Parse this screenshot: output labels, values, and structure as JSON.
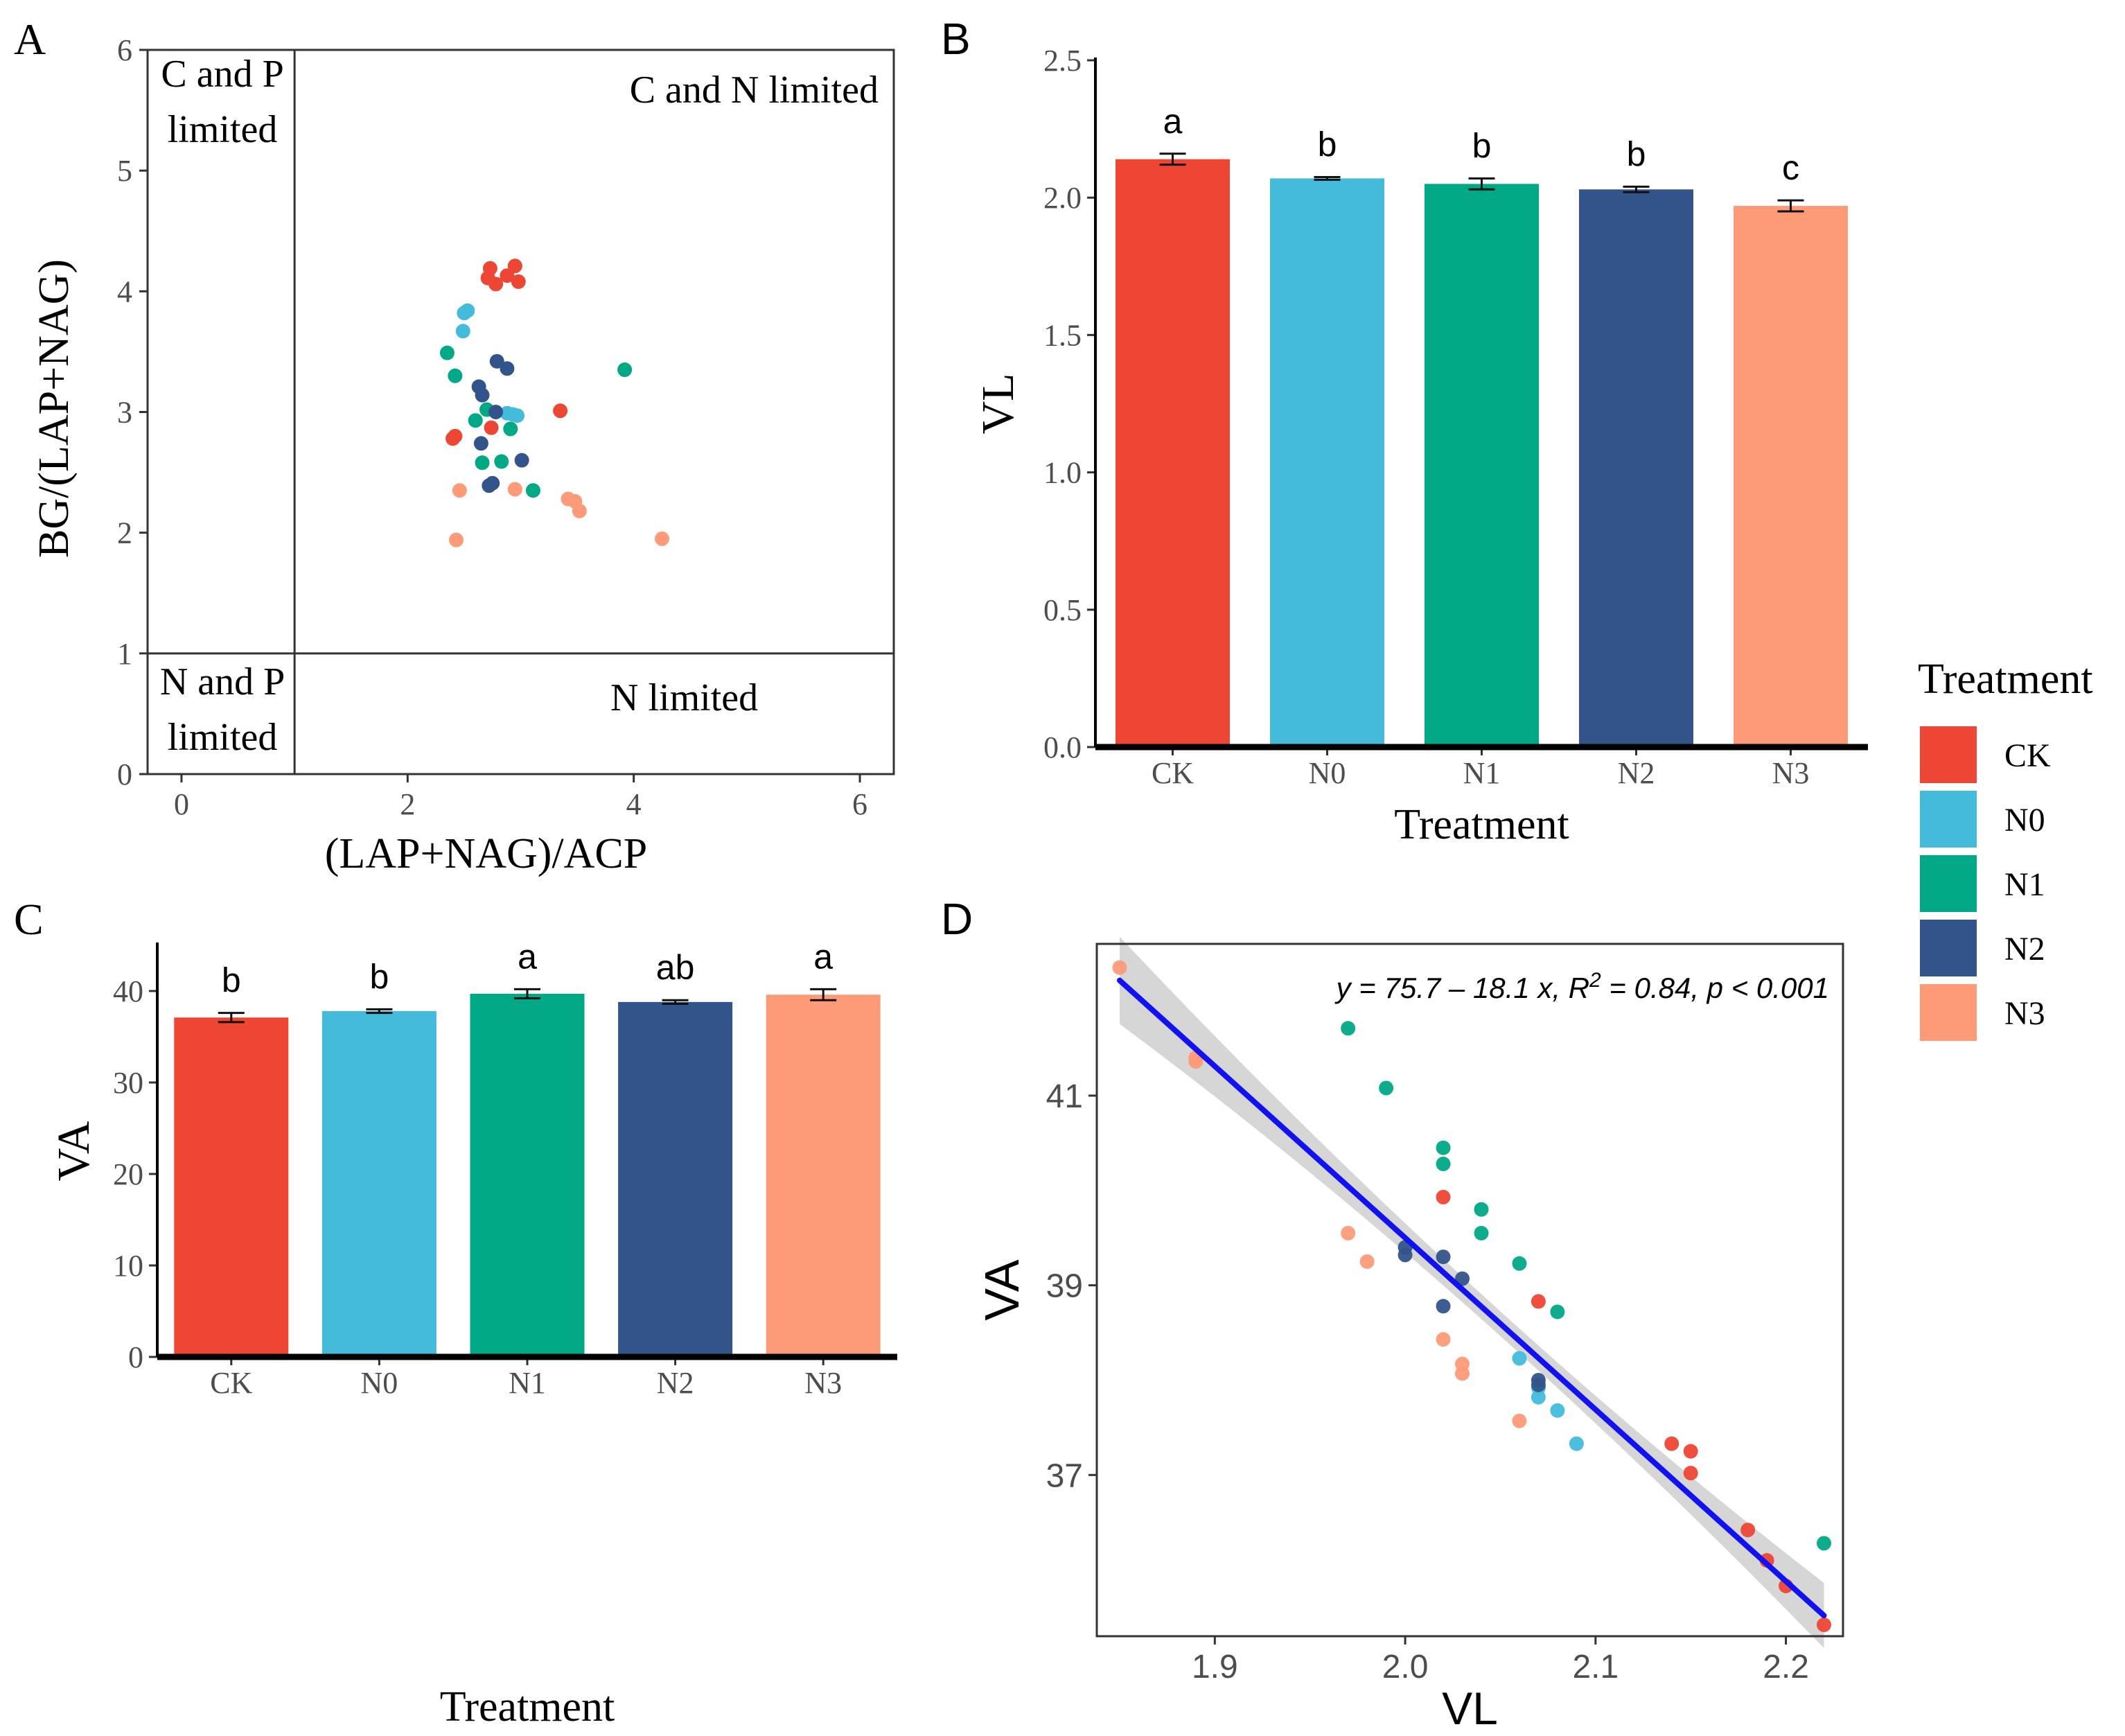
{
  "colors": {
    "CK": "#EE4634",
    "N0": "#45BBDC",
    "N1": "#00A886",
    "N2": "#33548A",
    "N3": "#FD9B78",
    "fit_line": "#1212F0",
    "ci_band": "#CFCFCF"
  },
  "legend": {
    "title": "Treatment",
    "items": [
      "CK",
      "N0",
      "N1",
      "N2",
      "N3"
    ]
  },
  "chart_data": [
    {
      "panel": "A",
      "type": "scatter",
      "xlabel": "(LAP+NAG)/ACP",
      "ylabel": "BG/(LAP+NAG)",
      "xlim": [
        -0.3,
        6.3
      ],
      "ylim": [
        0,
        6
      ],
      "xticks": [
        "0",
        "2",
        "4",
        "6"
      ],
      "yticks": [
        "0",
        "1",
        "2",
        "3",
        "4",
        "5",
        "6"
      ],
      "reference_lines": {
        "x": 1,
        "y": 1
      },
      "regions": [
        {
          "lines": [
            "C and P",
            "limited"
          ],
          "position": "top-left"
        },
        {
          "lines": [
            "C and N limited"
          ],
          "position": "top-right"
        },
        {
          "lines": [
            "N and P",
            "limited"
          ],
          "position": "bottom-left"
        },
        {
          "lines": [
            "N limited"
          ],
          "position": "bottom-right"
        }
      ],
      "series": [
        {
          "name": "CK",
          "points": [
            [
              2.73,
              4.19
            ],
            [
              2.71,
              4.11
            ],
            [
              2.78,
              4.06
            ],
            [
              2.88,
              4.13
            ],
            [
              2.95,
              4.21
            ],
            [
              2.98,
              4.08
            ],
            [
              3.35,
              3.01
            ],
            [
              2.4,
              2.78
            ],
            [
              2.42,
              2.8
            ],
            [
              2.74,
              2.87
            ]
          ]
        },
        {
          "name": "N0",
          "points": [
            [
              2.5,
              3.82
            ],
            [
              2.53,
              3.84
            ],
            [
              2.49,
              3.67
            ],
            [
              2.88,
              2.99
            ],
            [
              2.93,
              2.98
            ],
            [
              2.97,
              2.97
            ]
          ]
        },
        {
          "name": "N1",
          "points": [
            [
              2.35,
              3.49
            ],
            [
              2.42,
              3.3
            ],
            [
              3.92,
              3.35
            ],
            [
              2.7,
              3.02
            ],
            [
              2.6,
              2.93
            ],
            [
              2.91,
              2.86
            ],
            [
              2.66,
              2.58
            ],
            [
              2.83,
              2.59
            ],
            [
              3.11,
              2.35
            ]
          ]
        },
        {
          "name": "N2",
          "points": [
            [
              2.79,
              3.42
            ],
            [
              2.88,
              3.36
            ],
            [
              2.63,
              3.21
            ],
            [
              2.66,
              3.14
            ],
            [
              2.78,
              3.0
            ],
            [
              2.65,
              2.74
            ],
            [
              3.01,
              2.6
            ],
            [
              2.72,
              2.39
            ],
            [
              2.75,
              2.41
            ]
          ]
        },
        {
          "name": "N3",
          "points": [
            [
              2.46,
              2.35
            ],
            [
              2.95,
              2.36
            ],
            [
              3.42,
              2.28
            ],
            [
              3.48,
              2.26
            ],
            [
              3.52,
              2.18
            ],
            [
              2.43,
              1.94
            ],
            [
              4.25,
              1.95
            ]
          ]
        }
      ]
    },
    {
      "panel": "B",
      "type": "bar",
      "xlabel": "Treatment",
      "ylabel": "VL",
      "ylim": [
        0,
        2.5
      ],
      "yticks": [
        "0.0",
        "0.5",
        "1.0",
        "1.5",
        "2.0",
        "2.5"
      ],
      "categories": [
        "CK",
        "N0",
        "N1",
        "N2",
        "N3"
      ],
      "values": [
        2.14,
        2.07,
        2.05,
        2.03,
        1.97
      ],
      "errors": [
        0.02,
        0.005,
        0.02,
        0.01,
        0.02
      ],
      "letters": [
        "a",
        "b",
        "b",
        "b",
        "c"
      ]
    },
    {
      "panel": "C",
      "type": "bar",
      "xlabel": "Treatment",
      "ylabel": "VA",
      "ylim": [
        0,
        45
      ],
      "yticks": [
        "0",
        "10",
        "20",
        "30",
        "40"
      ],
      "categories": [
        "CK",
        "N0",
        "N1",
        "N2",
        "N3"
      ],
      "values": [
        37.1,
        37.8,
        39.7,
        38.8,
        39.6
      ],
      "errors": [
        0.5,
        0.2,
        0.5,
        0.2,
        0.6
      ],
      "letters": [
        "b",
        "b",
        "a",
        "ab",
        "a"
      ]
    },
    {
      "panel": "D",
      "type": "scatter",
      "xlabel": "VL",
      "ylabel": "VA",
      "xlim": [
        1.838,
        2.23
      ],
      "ylim": [
        35.3,
        42.6
      ],
      "xticks": [
        "1.9",
        "2.0",
        "2.1",
        "2.2"
      ],
      "yticks": [
        "37",
        "39",
        "41"
      ],
      "annotation": {
        "pre": "y = 75.7 – 18.1 x, R",
        "sup": "2",
        "post": " = 0.84, p < 0.001"
      },
      "fit": {
        "intercept": 75.7,
        "slope": -18.1,
        "x_range": [
          1.85,
          2.22
        ]
      },
      "series": [
        {
          "name": "CK",
          "points": [
            [
              2.02,
              39.93
            ],
            [
              2.07,
              38.83
            ],
            [
              2.14,
              37.33
            ],
            [
              2.15,
              37.25
            ],
            [
              2.15,
              37.02
            ],
            [
              2.18,
              36.42
            ],
            [
              2.19,
              36.1
            ],
            [
              2.2,
              35.83
            ],
            [
              2.22,
              35.42
            ]
          ]
        },
        {
          "name": "N0",
          "points": [
            [
              2.06,
              38.23
            ],
            [
              2.07,
              37.92
            ],
            [
              2.07,
              37.82
            ],
            [
              2.08,
              37.68
            ],
            [
              2.09,
              37.33
            ]
          ]
        },
        {
          "name": "N1",
          "points": [
            [
              1.97,
              41.71
            ],
            [
              1.99,
              41.08
            ],
            [
              2.02,
              40.45
            ],
            [
              2.02,
              40.28
            ],
            [
              2.04,
              39.8
            ],
            [
              2.04,
              39.55
            ],
            [
              2.06,
              39.23
            ],
            [
              2.08,
              38.72
            ],
            [
              2.22,
              36.28
            ]
          ]
        },
        {
          "name": "N2",
          "points": [
            [
              2.0,
              39.4
            ],
            [
              2.0,
              39.32
            ],
            [
              2.02,
              39.3
            ],
            [
              2.03,
              39.07
            ],
            [
              2.02,
              38.78
            ],
            [
              2.07,
              38.0
            ],
            [
              2.07,
              37.95
            ]
          ]
        },
        {
          "name": "N3",
          "points": [
            [
              1.85,
              42.35
            ],
            [
              1.89,
              41.4
            ],
            [
              1.89,
              41.36
            ],
            [
              1.97,
              39.55
            ],
            [
              1.98,
              39.25
            ],
            [
              2.02,
              38.43
            ],
            [
              2.03,
              38.17
            ],
            [
              2.03,
              38.07
            ],
            [
              2.06,
              37.57
            ]
          ]
        }
      ]
    }
  ]
}
